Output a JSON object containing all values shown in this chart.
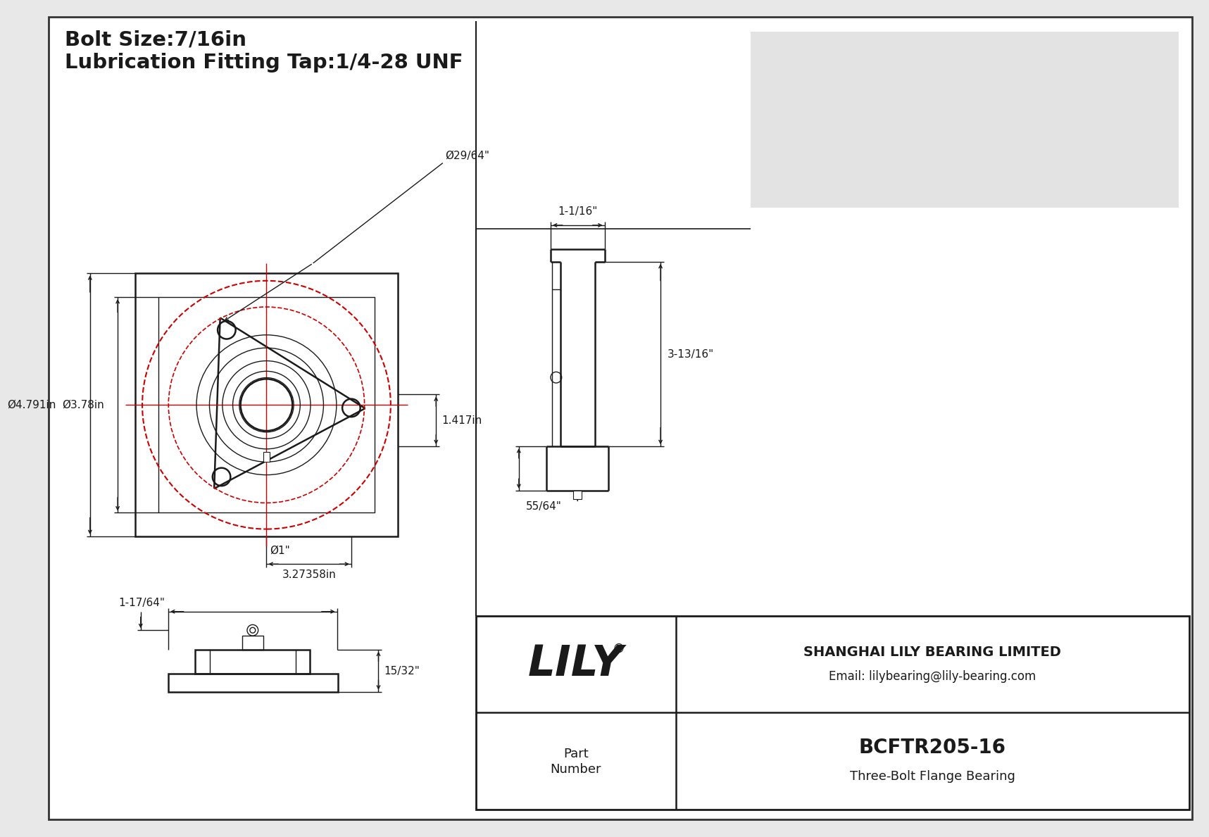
{
  "bg_color": "#e8e8e8",
  "paper_color": "#ffffff",
  "line_color": "#1a1a1a",
  "red_color": "#cc0000",
  "title_line1": "Bolt Size:7/16in",
  "title_line2": "Lubrication Fitting Tap:1/4-28 UNF",
  "company": "SHANGHAI LILY BEARING LIMITED",
  "email": "Email: lilybearing@lily-bearing.com",
  "part_number": "BCFTR205-16",
  "part_type": "Three-Bolt Flange Bearing",
  "part_label_line1": "Part",
  "part_label_line2": "Number",
  "dim_dia_bolt": "Ø29/64\"",
  "dim_d1": "Ø4.791in",
  "dim_d2": "Ø3.78in",
  "dim_bore": "Ø1\"",
  "dim_bcd": "3.27358in",
  "dim_height": "1.417in",
  "dim_side_top": "1-1/16\"",
  "dim_side_height": "3-13/16\"",
  "dim_side_bottom": "55/64\"",
  "dim_front_width": "1-17/64\"",
  "dim_front_height": "15/32\""
}
